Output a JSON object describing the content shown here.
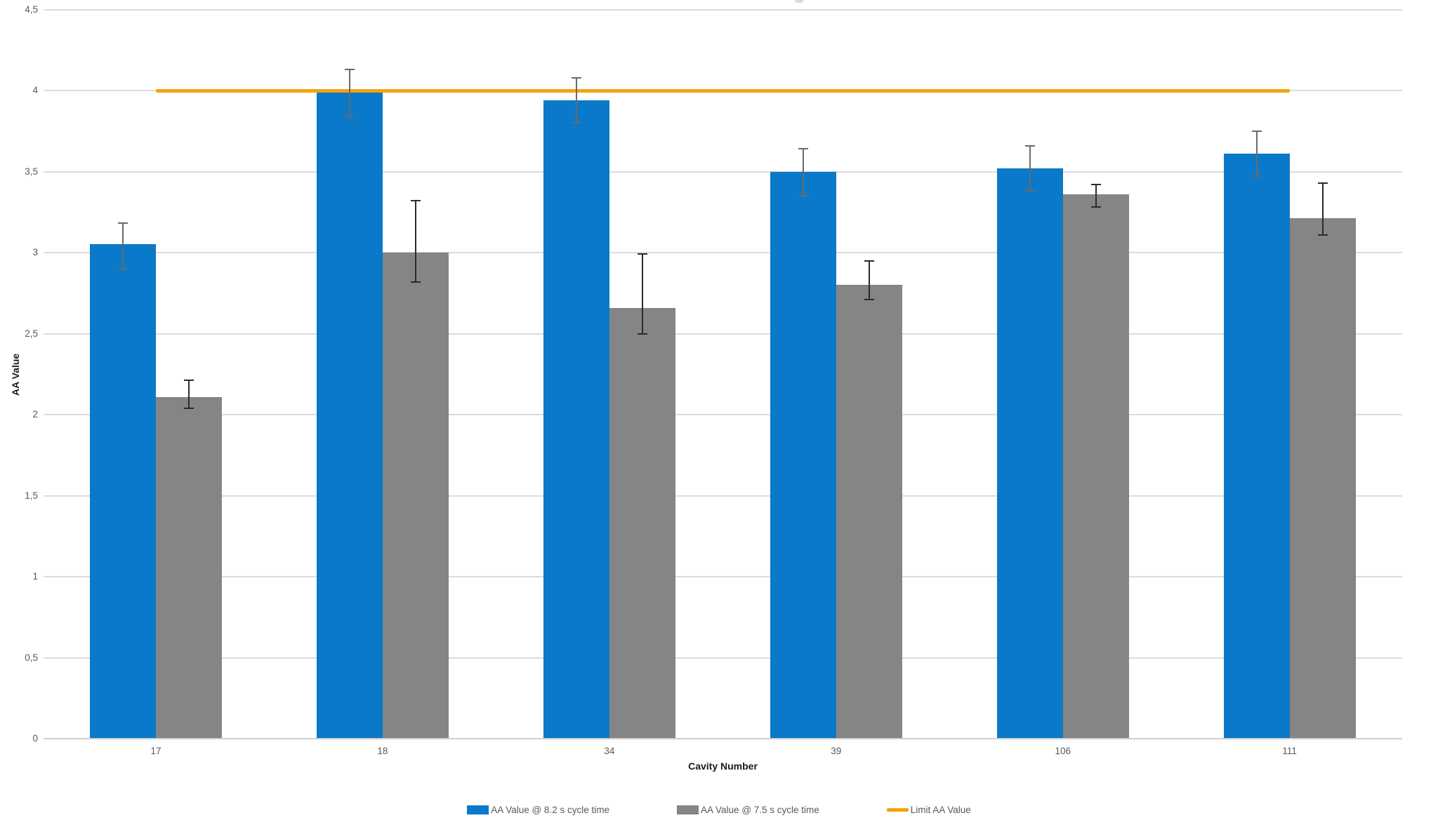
{
  "chart_data": {
    "type": "bar",
    "title": "",
    "xlabel": "Cavity Number",
    "ylabel": "AA Value",
    "categories": [
      "17",
      "18",
      "34",
      "39",
      "106",
      "111"
    ],
    "series": [
      {
        "name": "AA Value @ 8.2 s cycle time",
        "color": "#0b79c9",
        "error_color": "#6a6a6a",
        "values": [
          3.05,
          3.99,
          3.94,
          3.5,
          3.52,
          3.61
        ],
        "error_high": [
          3.18,
          4.13,
          4.08,
          3.64,
          3.66,
          3.75
        ],
        "error_low": [
          2.9,
          3.84,
          3.8,
          3.35,
          3.38,
          3.47
        ]
      },
      {
        "name": "AA Value @ 7.5 s cycle time",
        "color": "#858585",
        "error_color": "#2b2b2b",
        "values": [
          2.11,
          3.0,
          2.66,
          2.8,
          3.36,
          3.21
        ],
        "error_high": [
          2.21,
          3.32,
          2.99,
          2.95,
          3.42,
          3.43
        ],
        "error_low": [
          2.04,
          2.82,
          2.5,
          2.71,
          3.28,
          3.11
        ]
      }
    ],
    "limit_line": {
      "name": "Limit AA Value",
      "value": 4.0,
      "color": "#f7a10e"
    },
    "ylim": [
      0,
      4.5
    ],
    "ytick_step": 0.5,
    "ytick_labels": [
      "0",
      "0,5",
      "1",
      "1,5",
      "2",
      "2,5",
      "3",
      "3,5",
      "4",
      "4,5"
    ],
    "grid": true,
    "legend_position": "bottom"
  }
}
